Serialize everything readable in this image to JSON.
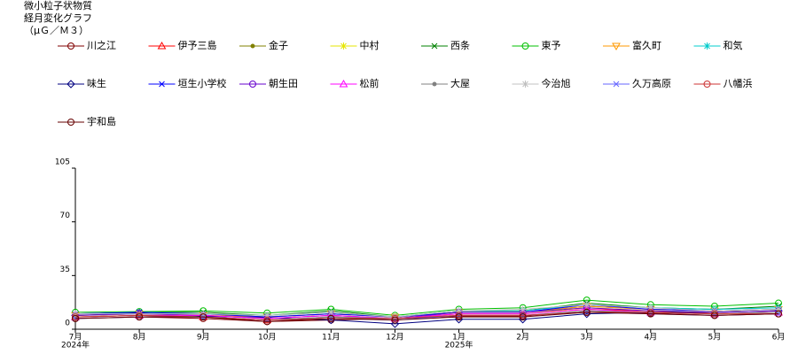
{
  "chart_data": {
    "type": "line",
    "title": [
      "微小粒子状物質",
      "経月変化グラフ",
      "（μＧ／Ｍ３）"
    ],
    "categories": [
      "7月",
      "8月",
      "9月",
      "10月",
      "11月",
      "12月",
      "1月",
      "2月",
      "3月",
      "4月",
      "5月",
      "6月"
    ],
    "x_sublabels": [
      "2024年",
      null,
      null,
      null,
      null,
      null,
      "2025年",
      null,
      null,
      null,
      null,
      null
    ],
    "ylim": [
      0,
      105
    ],
    "yticks": [
      0,
      35,
      70,
      105
    ],
    "series": [
      {
        "name": "川之江",
        "color": "#800000",
        "marker": "circle",
        "values": [
          7,
          8,
          7,
          5,
          6,
          7,
          8.5,
          8.5,
          12,
          10.5,
          9,
          10
        ]
      },
      {
        "name": "伊予三島",
        "color": "#ff0000",
        "marker": "triangle",
        "values": [
          8,
          9,
          8,
          6,
          8,
          7,
          10,
          10,
          13,
          12,
          10,
          11
        ]
      },
      {
        "name": "金子",
        "color": "#808000",
        "marker": "dot",
        "values": [
          9,
          10,
          10,
          8,
          10,
          8,
          11,
          11,
          15,
          13,
          12,
          13
        ]
      },
      {
        "name": "中村",
        "color": "#e6e600",
        "marker": "star",
        "values": [
          8,
          9,
          9,
          7,
          9,
          7,
          10,
          10,
          14,
          12,
          11,
          12
        ]
      },
      {
        "name": "西条",
        "color": "#008000",
        "marker": "cross",
        "values": [
          10,
          11,
          11,
          9,
          12,
          8,
          12,
          12,
          17,
          14,
          13,
          15
        ]
      },
      {
        "name": "東予",
        "color": "#00c000",
        "marker": "circle",
        "values": [
          11,
          11.5,
          12,
          10.5,
          13,
          9,
          13,
          14,
          19,
          16,
          15,
          17
        ]
      },
      {
        "name": "富久町",
        "color": "#ff9900",
        "marker": "triangle-down",
        "values": [
          9,
          10,
          9,
          8,
          10,
          8,
          11,
          11,
          15,
          13,
          12,
          13
        ]
      },
      {
        "name": "和気",
        "color": "#00cccc",
        "marker": "star",
        "values": [
          10,
          11,
          10,
          9,
          11,
          8,
          12,
          12,
          16,
          14,
          13,
          14
        ]
      },
      {
        "name": "味生",
        "color": "#000080",
        "marker": "diamond",
        "values": [
          9,
          10.5,
          8.5,
          7.5,
          6,
          3.5,
          6.5,
          6.5,
          10,
          11,
          11,
          12
        ]
      },
      {
        "name": "垣生小学校",
        "color": "#0000ff",
        "marker": "cross",
        "values": [
          10,
          11,
          10,
          8,
          10,
          8,
          11,
          11,
          16,
          13,
          12,
          13
        ]
      },
      {
        "name": "朝生田",
        "color": "#6600cc",
        "marker": "circle",
        "values": [
          9,
          10,
          9,
          7,
          9,
          7,
          11,
          11,
          14,
          12,
          11,
          12
        ]
      },
      {
        "name": "松前",
        "color": "#ff00ff",
        "marker": "triangle",
        "values": [
          8,
          9,
          9,
          7,
          9,
          7,
          10,
          10,
          13,
          11,
          10,
          11
        ]
      },
      {
        "name": "大屋",
        "color": "#808080",
        "marker": "dot",
        "values": [
          8,
          9,
          8,
          6,
          8,
          7,
          9,
          9,
          12,
          11,
          10,
          11
        ]
      },
      {
        "name": "今治旭",
        "color": "#c0c0c0",
        "marker": "star",
        "values": [
          10,
          10,
          10,
          9,
          11,
          8,
          12,
          13,
          16,
          14,
          12,
          13
        ]
      },
      {
        "name": "久万高原",
        "color": "#6666ff",
        "marker": "cross",
        "values": [
          7,
          8,
          8,
          6,
          7,
          6,
          9,
          9,
          11,
          10,
          9,
          10
        ]
      },
      {
        "name": "八幡浜",
        "color": "#cc3333",
        "marker": "circle",
        "values": [
          8,
          9,
          8,
          6,
          7,
          7,
          9,
          9,
          11,
          11,
          10,
          10
        ]
      },
      {
        "name": "宇和島",
        "color": "#660000",
        "marker": "circle",
        "values": [
          7,
          8,
          8,
          5,
          7,
          6,
          8,
          8,
          11,
          10,
          9,
          10
        ]
      }
    ]
  }
}
